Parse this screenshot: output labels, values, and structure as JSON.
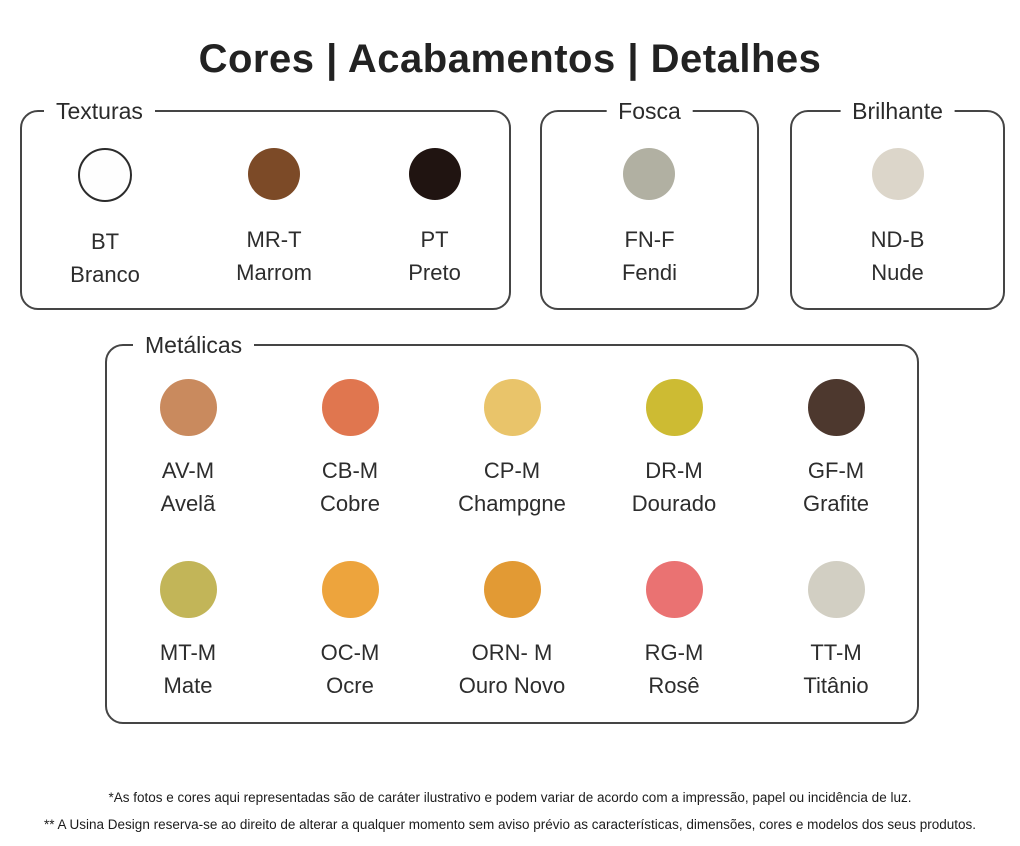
{
  "page": {
    "title": "Cores | Acabamentos | Detalhes",
    "background": "#ffffff",
    "border_color": "#454545",
    "text_color": "#2b2b2b"
  },
  "groups": [
    {
      "id": "texturas",
      "label": "Texturas",
      "swatches": [
        {
          "code": "BT",
          "name": "Branco",
          "color": "#fefefe",
          "outlined": true
        },
        {
          "code": "MR-T",
          "name": "Marrom",
          "color": "#7c4a27"
        },
        {
          "code": "PT",
          "name": "Preto",
          "color": "#201411"
        }
      ]
    },
    {
      "id": "fosca",
      "label": "Fosca",
      "swatches": [
        {
          "code": "FN-F",
          "name": "Fendi",
          "color": "#b1b0a2"
        }
      ]
    },
    {
      "id": "brilhante",
      "label": "Brilhante",
      "swatches": [
        {
          "code": "ND-B",
          "name": "Nude",
          "color": "#dcd6ca"
        }
      ]
    },
    {
      "id": "metalicas",
      "label": "Metálicas",
      "swatches": [
        {
          "code": "AV-M",
          "name": "Avelã",
          "color": "#c98a5e"
        },
        {
          "code": "CB-M",
          "name": "Cobre",
          "color": "#e0764f"
        },
        {
          "code": "CP-M",
          "name": "Champgne",
          "color": "#e9c46a"
        },
        {
          "code": "DR-M",
          "name": "Dourado",
          "color": "#cdbb33"
        },
        {
          "code": "GF-M",
          "name": "Grafite",
          "color": "#4d382e"
        },
        {
          "code": "MT-M",
          "name": "Mate",
          "color": "#c2b558"
        },
        {
          "code": "OC-M",
          "name": "Ocre",
          "color": "#eda43d"
        },
        {
          "code": "ORN- M",
          "name": "Ouro Novo",
          "color": "#e29a34"
        },
        {
          "code": "RG-M",
          "name": "Rosê",
          "color": "#ea7272"
        },
        {
          "code": "TT-M",
          "name": "Titânio",
          "color": "#d2cfc3"
        }
      ]
    }
  ],
  "footnotes": [
    "*As fotos e cores aqui representadas são de caráter ilustrativo e podem variar de acordo com a impressão, papel ou incidência de luz.",
    "** A Usina Design reserva-se ao direito de alterar a qualquer momento sem aviso prévio as características, dimensões, cores e modelos dos seus produtos."
  ]
}
